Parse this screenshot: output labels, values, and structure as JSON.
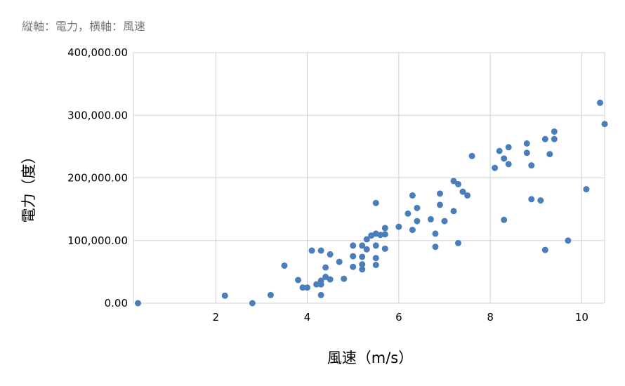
{
  "chart_data": {
    "type": "scatter",
    "subtitle": "縦軸：電力，横軸：風速",
    "xlabel": "風速（m/s）",
    "ylabel": "電力（度）",
    "xlim": [
      0.2,
      10.5
    ],
    "ylim": [
      0,
      400000
    ],
    "x_ticks": [
      2,
      4,
      6,
      8,
      10
    ],
    "x_tick_labels": [
      "2",
      "4",
      "6",
      "8",
      "10"
    ],
    "y_ticks": [
      0,
      100000,
      200000,
      300000,
      400000
    ],
    "y_tick_labels": [
      "0.00",
      "100,000.00",
      "200,000.00",
      "300,000.00",
      "400,000.00"
    ],
    "grid": true,
    "legend": "none",
    "color": "#4a7ebb",
    "series": [
      {
        "points": [
          [
            0.3,
            0
          ],
          [
            2.2,
            12000
          ],
          [
            2.8,
            0
          ],
          [
            3.2,
            13000
          ],
          [
            3.5,
            60000
          ],
          [
            3.8,
            37000
          ],
          [
            3.9,
            25000
          ],
          [
            4.0,
            25000
          ],
          [
            4.1,
            84000
          ],
          [
            4.2,
            30000
          ],
          [
            4.3,
            84000
          ],
          [
            4.3,
            30000
          ],
          [
            4.3,
            36000
          ],
          [
            4.3,
            13000
          ],
          [
            4.4,
            57000
          ],
          [
            4.4,
            42000
          ],
          [
            4.5,
            78000
          ],
          [
            4.5,
            38000
          ],
          [
            4.7,
            66000
          ],
          [
            4.8,
            39000
          ],
          [
            5.0,
            92000
          ],
          [
            5.0,
            75000
          ],
          [
            5.0,
            58000
          ],
          [
            5.2,
            92000
          ],
          [
            5.2,
            74000
          ],
          [
            5.2,
            62000
          ],
          [
            5.2,
            54000
          ],
          [
            5.3,
            102000
          ],
          [
            5.3,
            86000
          ],
          [
            5.4,
            108000
          ],
          [
            5.5,
            160000
          ],
          [
            5.5,
            111000
          ],
          [
            5.5,
            92000
          ],
          [
            5.5,
            72000
          ],
          [
            5.5,
            61000
          ],
          [
            5.6,
            109000
          ],
          [
            5.7,
            120000
          ],
          [
            5.7,
            110000
          ],
          [
            5.7,
            87000
          ],
          [
            6.0,
            122000
          ],
          [
            6.2,
            143000
          ],
          [
            6.3,
            172000
          ],
          [
            6.3,
            117000
          ],
          [
            6.4,
            152000
          ],
          [
            6.4,
            131000
          ],
          [
            6.7,
            134000
          ],
          [
            6.8,
            111000
          ],
          [
            6.8,
            90000
          ],
          [
            6.9,
            175000
          ],
          [
            6.9,
            157000
          ],
          [
            7.0,
            131000
          ],
          [
            7.2,
            195000
          ],
          [
            7.2,
            147000
          ],
          [
            7.3,
            190000
          ],
          [
            7.3,
            96000
          ],
          [
            7.4,
            178000
          ],
          [
            7.5,
            172000
          ],
          [
            7.6,
            235000
          ],
          [
            8.1,
            216000
          ],
          [
            8.2,
            243000
          ],
          [
            8.3,
            231000
          ],
          [
            8.3,
            133000
          ],
          [
            8.4,
            249000
          ],
          [
            8.4,
            222000
          ],
          [
            8.8,
            255000
          ],
          [
            8.8,
            240000
          ],
          [
            8.9,
            220000
          ],
          [
            8.9,
            166000
          ],
          [
            9.1,
            164000
          ],
          [
            9.2,
            262000
          ],
          [
            9.2,
            85000
          ],
          [
            9.3,
            238000
          ],
          [
            9.4,
            274000
          ],
          [
            9.4,
            262000
          ],
          [
            9.7,
            100000
          ],
          [
            10.1,
            182000
          ],
          [
            10.4,
            320000
          ],
          [
            10.5,
            286000
          ]
        ]
      }
    ]
  }
}
